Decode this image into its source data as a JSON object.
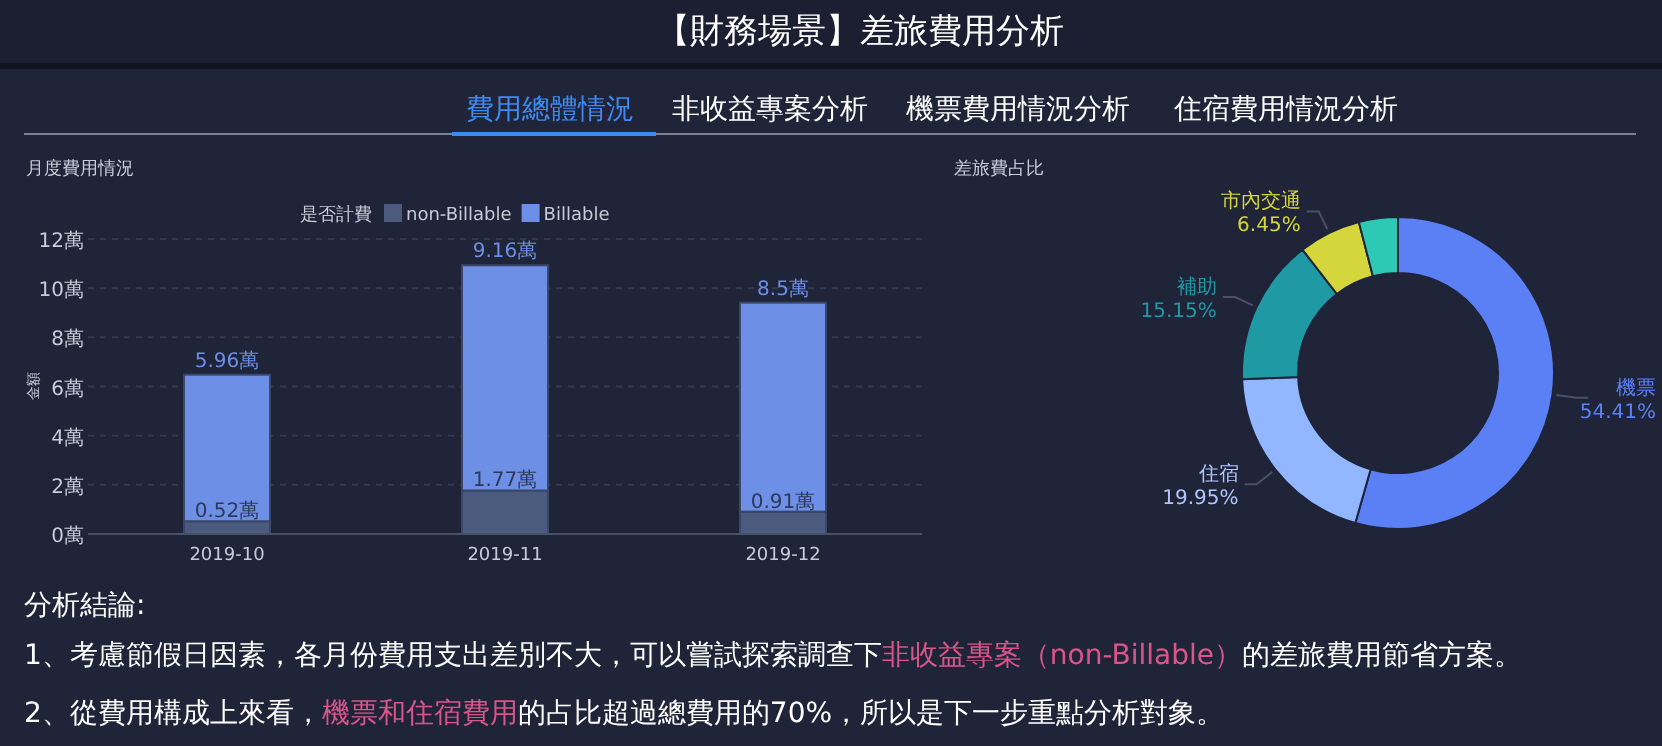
{
  "chart_data": [
    {
      "type": "other",
      "title": "【財務場景】差旅費用分析",
      "annotations": [
        "費用總體情況",
        "非收益專案分析",
        "機票費用情況分析",
        "住宿費用情況分析",
        "分析結論:",
        "1、考慮節假日因素，各月份費用支出差別不大，可以嘗試探索調查下",
        "非收益專案（non-Billable）",
        "的差旅費用節省方案。",
        "2、從費用構成上來看，",
        "機票和住宿費用",
        "的占比超過總費用的70%，所以是下一步重點分析對象。"
      ]
    },
    {
      "type": "bar",
      "title": "月度費用情況",
      "ylabel": "金額",
      "legend_title": "是否計費",
      "legend": "top",
      "grid": "y",
      "stacked": true,
      "categories": [
        "2019-10",
        "2019-11",
        "2019-12"
      ],
      "series": [
        {
          "name": "non-Billable",
          "color": "#4b5b7e",
          "values": [
            0.52,
            1.77,
            0.91
          ],
          "value_labels": [
            "0.52萬",
            "1.77萬",
            "0.91萬"
          ]
        },
        {
          "name": "Billable",
          "color": "#6d8fe6",
          "values": [
            5.96,
            9.16,
            8.5
          ],
          "value_labels": [
            "5.96萬",
            "9.16萬",
            "8.5萬"
          ]
        }
      ],
      "ylim": [
        0,
        12
      ],
      "yticks": [
        {
          "value": 0,
          "label": "0萬"
        },
        {
          "value": 2,
          "label": "2萬"
        },
        {
          "value": 4,
          "label": "4萬"
        },
        {
          "value": 6,
          "label": "6萬"
        },
        {
          "value": 8,
          "label": "8萬"
        },
        {
          "value": 10,
          "label": "10萬"
        },
        {
          "value": 12,
          "label": "12萬"
        }
      ]
    },
    {
      "type": "donut",
      "title": "差旅費占比",
      "categories": [
        "機票",
        "住宿",
        "補助",
        "市內交通",
        null
      ],
      "values": [
        54.41,
        19.95,
        15.15,
        6.45,
        4.04
      ],
      "value_labels": [
        "54.41%",
        "19.95%",
        "15.15%",
        "6.45%",
        null
      ],
      "colors": [
        "#5b80f5",
        "#92b6ff",
        "#1f9aa5",
        "#d5d63b",
        "#2ec9b4"
      ]
    }
  ]
}
